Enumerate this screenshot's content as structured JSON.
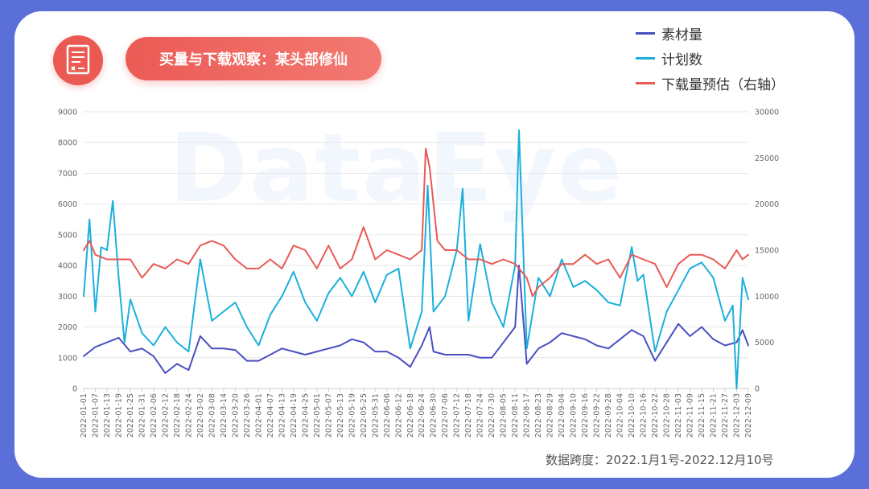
{
  "header": {
    "title": "买量与下载观察：某头部修仙"
  },
  "footer": {
    "note": "数据跨度：2022.1月1号-2022.12月10号"
  },
  "watermark": "DataEye",
  "colors": {
    "background": "#5b6fd8",
    "accent": "#ea5a52",
    "series_materials": "#4a4fc0",
    "series_plans": "#1bb0dc",
    "series_downloads": "#e85a55"
  },
  "chart_data": {
    "type": "line",
    "legend_position": "top-right",
    "grid": true,
    "y_left": {
      "min": 0,
      "max": 9000,
      "ticks": [
        "0",
        "1000",
        "2000",
        "3000",
        "4000",
        "5000",
        "6000",
        "7000",
        "8000",
        "9000"
      ]
    },
    "y_right": {
      "min": 0,
      "max": 30000,
      "ticks": [
        "0",
        "5000",
        "10000",
        "15000",
        "20000",
        "25000",
        "30000"
      ]
    },
    "x_ticks": [
      "2022-01-01",
      "2022-01-07",
      "2022-01-13",
      "2022-01-19",
      "2022-01-25",
      "2022-01-31",
      "2022-02-06",
      "2022-02-12",
      "2022-02-18",
      "2022-02-24",
      "2022-03-02",
      "2022-03-08",
      "2022-03-14",
      "2022-03-20",
      "2022-03-26",
      "2022-04-01",
      "2022-04-07",
      "2022-04-13",
      "2022-04-19",
      "2022-04-25",
      "2022-05-01",
      "2022-05-07",
      "2022-05-13",
      "2022-05-19",
      "2022-05-25",
      "2022-05-31",
      "2022-06-06",
      "2022-06-12",
      "2022-06-18",
      "2022-06-24",
      "2022-06-30",
      "2022-07-06",
      "2022-07-12",
      "2022-07-18",
      "2022-07-24",
      "2022-07-30",
      "2022-08-05",
      "2022-08-11",
      "2022-08-17",
      "2022-08-23",
      "2022-08-29",
      "2022-09-04",
      "2022-09-10",
      "2022-09-16",
      "2022-09-22",
      "2022-09-28",
      "2022-10-04",
      "2022-10-10",
      "2022-10-16",
      "2022-10-22",
      "2022-10-28",
      "2022-11-03",
      "2022-11-09",
      "2022-11-15",
      "2022-11-21",
      "2022-11-27",
      "2022-12-03",
      "2022-12-09"
    ],
    "series": [
      {
        "name": "素材量",
        "axis": "left",
        "x": [
          "2022-01-01",
          "2022-01-07",
          "2022-01-13",
          "2022-01-19",
          "2022-01-25",
          "2022-01-31",
          "2022-02-06",
          "2022-02-12",
          "2022-02-18",
          "2022-02-24",
          "2022-03-02",
          "2022-03-08",
          "2022-03-14",
          "2022-03-20",
          "2022-03-26",
          "2022-04-01",
          "2022-04-07",
          "2022-04-13",
          "2022-04-19",
          "2022-04-25",
          "2022-05-01",
          "2022-05-07",
          "2022-05-13",
          "2022-05-19",
          "2022-05-25",
          "2022-05-31",
          "2022-06-06",
          "2022-06-12",
          "2022-06-18",
          "2022-06-24",
          "2022-06-28",
          "2022-06-30",
          "2022-07-06",
          "2022-07-12",
          "2022-07-18",
          "2022-07-24",
          "2022-07-30",
          "2022-08-05",
          "2022-08-11",
          "2022-08-13",
          "2022-08-17",
          "2022-08-23",
          "2022-08-29",
          "2022-09-04",
          "2022-09-10",
          "2022-09-16",
          "2022-09-22",
          "2022-09-28",
          "2022-10-04",
          "2022-10-10",
          "2022-10-16",
          "2022-10-22",
          "2022-10-28",
          "2022-11-03",
          "2022-11-09",
          "2022-11-15",
          "2022-11-21",
          "2022-11-27",
          "2022-12-03",
          "2022-12-06",
          "2022-12-09"
        ],
        "values": [
          1050,
          1350,
          1500,
          1650,
          1200,
          1300,
          1050,
          500,
          800,
          600,
          1700,
          1300,
          1300,
          1250,
          900,
          900,
          1100,
          1300,
          1200,
          1100,
          1200,
          1300,
          1400,
          1600,
          1500,
          1200,
          1200,
          1000,
          700,
          1400,
          2000,
          1200,
          1100,
          1100,
          1100,
          1000,
          1000,
          1500,
          2000,
          4000,
          800,
          1300,
          1500,
          1800,
          1700,
          1600,
          1400,
          1300,
          1600,
          1900,
          1700,
          900,
          1500,
          2100,
          1700,
          2000,
          1600,
          1400,
          1500,
          1900,
          1400
        ]
      },
      {
        "name": "计划数",
        "axis": "left",
        "x": [
          "2022-01-01",
          "2022-01-04",
          "2022-01-07",
          "2022-01-10",
          "2022-01-13",
          "2022-01-16",
          "2022-01-19",
          "2022-01-22",
          "2022-01-25",
          "2022-01-31",
          "2022-02-06",
          "2022-02-12",
          "2022-02-18",
          "2022-02-24",
          "2022-03-02",
          "2022-03-08",
          "2022-03-14",
          "2022-03-20",
          "2022-03-26",
          "2022-04-01",
          "2022-04-07",
          "2022-04-13",
          "2022-04-19",
          "2022-04-25",
          "2022-05-01",
          "2022-05-07",
          "2022-05-13",
          "2022-05-19",
          "2022-05-25",
          "2022-05-31",
          "2022-06-06",
          "2022-06-12",
          "2022-06-18",
          "2022-06-24",
          "2022-06-27",
          "2022-06-30",
          "2022-07-06",
          "2022-07-12",
          "2022-07-15",
          "2022-07-18",
          "2022-07-24",
          "2022-07-30",
          "2022-08-05",
          "2022-08-11",
          "2022-08-13",
          "2022-08-17",
          "2022-08-23",
          "2022-08-29",
          "2022-09-04",
          "2022-09-10",
          "2022-09-16",
          "2022-09-22",
          "2022-09-28",
          "2022-10-04",
          "2022-10-10",
          "2022-10-13",
          "2022-10-16",
          "2022-10-22",
          "2022-10-28",
          "2022-11-03",
          "2022-11-09",
          "2022-11-15",
          "2022-11-21",
          "2022-11-27",
          "2022-12-01",
          "2022-12-03",
          "2022-12-06",
          "2022-12-09"
        ],
        "values": [
          3000,
          5500,
          2500,
          4600,
          4500,
          6100,
          3600,
          1500,
          2900,
          1800,
          1400,
          2000,
          1500,
          1200,
          4200,
          2200,
          2500,
          2800,
          2000,
          1400,
          2400,
          3000,
          3800,
          2800,
          2200,
          3100,
          3600,
          3000,
          3800,
          2800,
          3700,
          3900,
          1300,
          2500,
          6600,
          2500,
          3000,
          4500,
          6500,
          2200,
          4700,
          2800,
          2000,
          4000,
          8400,
          1300,
          3600,
          3000,
          4200,
          3300,
          3500,
          3200,
          2800,
          2700,
          4600,
          3500,
          3700,
          1200,
          2500,
          3200,
          3900,
          4100,
          3600,
          2200,
          2700,
          0,
          3600,
          2900
        ]
      },
      {
        "name": "下载量预估（右轴）",
        "axis": "right",
        "x": [
          "2022-01-01",
          "2022-01-04",
          "2022-01-07",
          "2022-01-13",
          "2022-01-19",
          "2022-01-25",
          "2022-01-31",
          "2022-02-06",
          "2022-02-12",
          "2022-02-18",
          "2022-02-24",
          "2022-03-02",
          "2022-03-08",
          "2022-03-14",
          "2022-03-20",
          "2022-03-26",
          "2022-04-01",
          "2022-04-07",
          "2022-04-13",
          "2022-04-19",
          "2022-04-25",
          "2022-05-01",
          "2022-05-07",
          "2022-05-13",
          "2022-05-19",
          "2022-05-25",
          "2022-05-31",
          "2022-06-06",
          "2022-06-12",
          "2022-06-18",
          "2022-06-24",
          "2022-06-26",
          "2022-06-28",
          "2022-07-02",
          "2022-07-06",
          "2022-07-12",
          "2022-07-18",
          "2022-07-24",
          "2022-07-30",
          "2022-08-05",
          "2022-08-11",
          "2022-08-17",
          "2022-08-20",
          "2022-08-23",
          "2022-08-29",
          "2022-09-04",
          "2022-09-10",
          "2022-09-16",
          "2022-09-22",
          "2022-09-28",
          "2022-10-04",
          "2022-10-10",
          "2022-10-16",
          "2022-10-22",
          "2022-10-28",
          "2022-11-03",
          "2022-11-09",
          "2022-11-15",
          "2022-11-21",
          "2022-11-27",
          "2022-12-03",
          "2022-12-06",
          "2022-12-09"
        ],
        "values": [
          15000,
          16000,
          14500,
          14000,
          14000,
          14000,
          12000,
          13500,
          13000,
          14000,
          13500,
          15500,
          16000,
          15500,
          14000,
          13000,
          13000,
          14000,
          13000,
          15500,
          15000,
          13000,
          15500,
          13000,
          14000,
          17500,
          14000,
          15000,
          14500,
          14000,
          15000,
          26000,
          24000,
          16000,
          15000,
          15000,
          14000,
          14000,
          13500,
          14000,
          13500,
          12000,
          10000,
          11000,
          12000,
          13500,
          13500,
          14500,
          13500,
          14000,
          12000,
          14500,
          14000,
          13500,
          11000,
          13500,
          14500,
          14500,
          14000,
          13000,
          15000,
          14000,
          14500
        ]
      }
    ]
  }
}
